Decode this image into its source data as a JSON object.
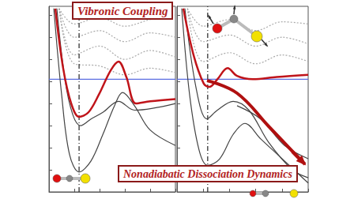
{
  "chart_data": [
    {
      "type": "line",
      "title": "Vibronic Coupling",
      "xlim": [
        0,
        5
      ],
      "ylim": [
        0,
        8.4
      ],
      "xticks": [
        0,
        1,
        2,
        3,
        4,
        5
      ],
      "yticks": [
        0,
        1,
        2,
        3,
        4,
        5,
        6,
        7,
        8
      ],
      "tick_labels": false,
      "grid": false,
      "series": [
        {
          "color": "#aaaaaa",
          "line_style": "dotted",
          "x": [
            0.4,
            1,
            2,
            3,
            4,
            5
          ],
          "values": [
            8.3,
            5.8,
            5.7,
            5.3,
            5.6,
            5.4
          ]
        },
        {
          "color": "#aaaaaa",
          "line_style": "dotted",
          "x": [
            0.4,
            1,
            2,
            3,
            4,
            5
          ],
          "values": [
            8.3,
            6.2,
            6.6,
            6.0,
            6.4,
            6.1
          ]
        },
        {
          "color": "#aaaaaa",
          "line_style": "dotted",
          "x": [
            0.4,
            1,
            2,
            3,
            4,
            5
          ],
          "values": [
            8.3,
            7.0,
            7.3,
            6.8,
            7.2,
            7.0
          ]
        },
        {
          "color": "#aaaaaa",
          "line_style": "dotted",
          "x": [
            0.4,
            1,
            2,
            3,
            4,
            5
          ],
          "values": [
            8.3,
            7.6,
            7.9,
            7.5,
            7.8,
            8.0
          ]
        },
        {
          "color": "#5b6ee1",
          "line_style": "solid",
          "x": [
            0,
            5
          ],
          "values": [
            5.1,
            5.1
          ]
        },
        {
          "color": "#222222",
          "line_style": "dashdot",
          "x": [
            1.19,
            1.19
          ],
          "values": [
            0,
            8.4
          ]
        },
        {
          "color": "#444444",
          "line_style": "solid",
          "x": [
            0.19,
            0.5,
            0.81,
            1.19,
            1.66,
            2.13,
            2.59,
            2.91,
            3.38,
            4.0,
            5.0
          ],
          "values": [
            8.3,
            4.4,
            1.7,
            0.9,
            1.4,
            2.6,
            3.9,
            4.5,
            3.9,
            2.8,
            2.1
          ]
        },
        {
          "color": "#444444",
          "line_style": "solid",
          "x": [
            0.31,
            0.63,
            0.94,
            1.25,
            1.66,
            2.13,
            2.75,
            3.38,
            5.0
          ],
          "values": [
            8.3,
            5.1,
            3.5,
            3.0,
            3.3,
            3.6,
            4.1,
            3.7,
            4.0
          ]
        },
        {
          "color": "#c0141a",
          "line_style": "solid",
          "x": [
            0.25,
            0.56,
            0.88,
            1.19,
            1.56,
            1.97,
            2.44,
            2.75,
            3.06,
            3.44,
            4.0,
            5.0
          ],
          "values": [
            8.3,
            5.6,
            4.0,
            3.4,
            3.6,
            4.4,
            5.5,
            5.9,
            5.2,
            4.0,
            4.1,
            4.2
          ]
        }
      ]
    },
    {
      "type": "line",
      "title": "Nonadiabatic Dissociation Dynamics",
      "xlim": [
        0,
        5
      ],
      "ylim": [
        0,
        8.4
      ],
      "xticks": [
        0,
        1,
        2,
        3,
        4,
        5
      ],
      "yticks": [
        0,
        1,
        2,
        3,
        4,
        5,
        6,
        7,
        8
      ],
      "tick_labels": false,
      "grid": false,
      "series": [
        {
          "color": "#aaaaaa",
          "line_style": "dotted",
          "x": [
            0.4,
            1,
            2,
            3,
            4,
            5
          ],
          "values": [
            8.3,
            5.9,
            6.3,
            5.8,
            6.2,
            5.9
          ]
        },
        {
          "color": "#aaaaaa",
          "line_style": "dotted",
          "x": [
            0.4,
            1,
            2,
            3,
            4,
            5
          ],
          "values": [
            8.3,
            6.8,
            7.1,
            6.6,
            7.0,
            6.7
          ]
        },
        {
          "color": "#aaaaaa",
          "line_style": "dotted",
          "x": [
            0.4,
            1,
            2,
            3,
            4,
            5
          ],
          "values": [
            8.3,
            7.5,
            7.8,
            7.3,
            7.7,
            7.6
          ]
        },
        {
          "color": "#5b6ee1",
          "line_style": "solid",
          "x": [
            0,
            5
          ],
          "values": [
            5.1,
            5.1
          ]
        },
        {
          "color": "#222222",
          "line_style": "dashdot",
          "x": [
            1.17,
            1.17
          ],
          "values": [
            0,
            8.4
          ]
        },
        {
          "color": "#444444",
          "line_style": "solid",
          "x": [
            0.18,
            0.48,
            0.84,
            1.17,
            1.63,
            2.14,
            2.59,
            3.19,
            4.1,
            5.0
          ],
          "values": [
            8.3,
            4.4,
            1.9,
            1.2,
            1.5,
            2.6,
            3.1,
            2.4,
            1.4,
            0.4
          ]
        },
        {
          "color": "#444444",
          "line_style": "solid",
          "x": [
            0.3,
            0.72,
            1.14,
            1.54,
            2.14,
            2.74,
            3.49,
            4.4,
            5.0
          ],
          "values": [
            8.3,
            4.75,
            3.3,
            3.7,
            4.1,
            3.7,
            2.25,
            1.0,
            0.64
          ]
        },
        {
          "color": "#444444",
          "line_style": "solid",
          "x": [
            2.29,
            3.19,
            4.1,
            5.0
          ],
          "values": [
            3.9,
            3.3,
            2.1,
            1.5
          ]
        },
        {
          "color": "#c0141a",
          "line_style": "solid",
          "x": [
            0.24,
            0.63,
            1.02,
            1.23,
            1.54,
            1.93,
            2.29,
            2.89,
            3.8,
            5.0
          ],
          "values": [
            8.3,
            6.2,
            4.9,
            4.75,
            5.1,
            5.6,
            5.25,
            5.1,
            5.2,
            5.3
          ]
        }
      ]
    }
  ]
}
